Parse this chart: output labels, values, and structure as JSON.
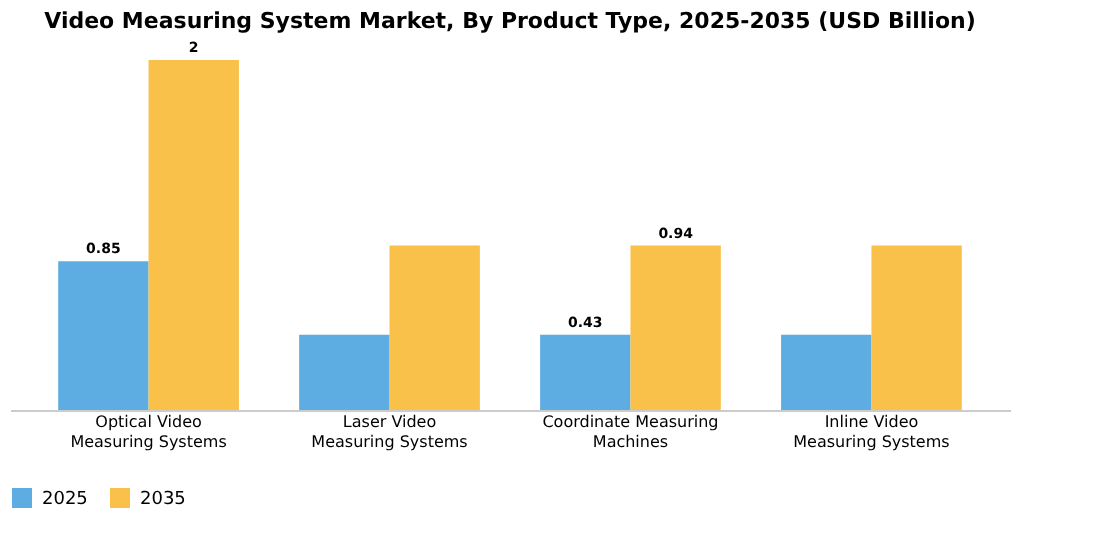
{
  "chart_data": {
    "type": "bar",
    "title": "Video Measuring System Market, By Product Type, 2025-2035 (USD Billion)",
    "categories": [
      "Optical Video Measuring Systems",
      "Laser Video Measuring Systems",
      "Coordinate Measuring Machines",
      "Inline Video Measuring Systems"
    ],
    "series": [
      {
        "name": "2025",
        "color": "#5dade2",
        "values": [
          0.85,
          0.43,
          0.43,
          0.43
        ],
        "value_labels": [
          "0.85",
          null,
          "0.43",
          null
        ]
      },
      {
        "name": "2035",
        "color": "#f9c04a",
        "values": [
          2,
          0.94,
          0.94,
          0.94
        ],
        "value_labels": [
          "2",
          null,
          "0.94",
          null
        ]
      }
    ],
    "legend": "bottom",
    "grid": false
  }
}
